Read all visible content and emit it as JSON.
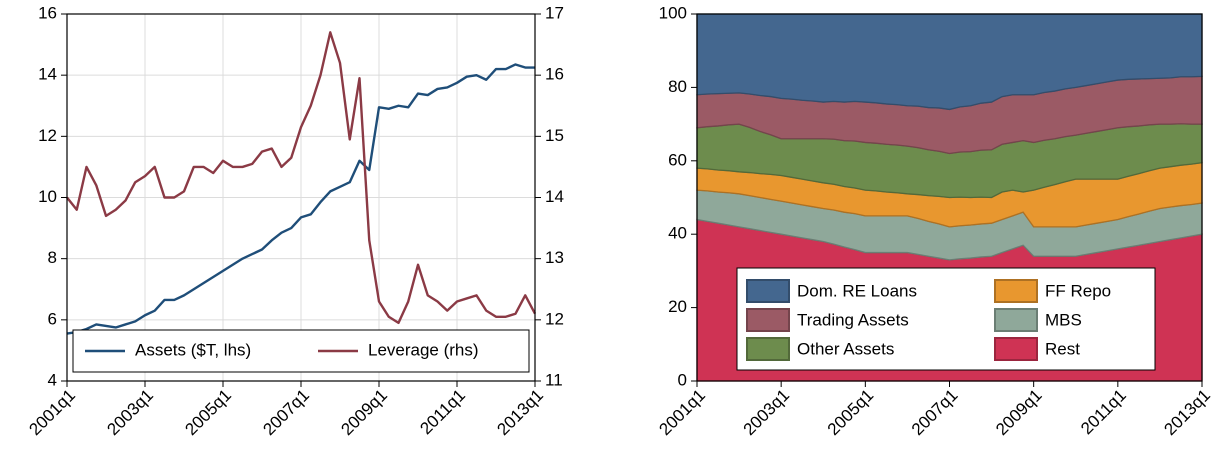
{
  "chart_data": [
    {
      "type": "line",
      "categories": [
        "2001q1",
        null,
        null,
        null,
        null,
        null,
        null,
        null,
        "2003q1",
        null,
        null,
        null,
        null,
        null,
        null,
        null,
        "2005q1",
        null,
        null,
        null,
        null,
        null,
        null,
        null,
        "2007q1",
        null,
        null,
        null,
        null,
        null,
        null,
        null,
        "2009q1",
        null,
        null,
        null,
        null,
        null,
        null,
        null,
        "2011q1",
        null,
        null,
        null,
        null,
        null,
        null,
        null,
        "2013q1"
      ],
      "series": [
        {
          "name": "Assets ($T, lhs)",
          "color": "#1f4e79",
          "values": [
            5.55,
            5.6,
            5.7,
            5.85,
            5.8,
            5.75,
            5.85,
            5.95,
            6.15,
            6.3,
            6.65,
            6.65,
            6.8,
            7.0,
            7.2,
            7.4,
            7.6,
            7.8,
            8.0,
            8.15,
            8.3,
            8.6,
            8.85,
            9.0,
            9.35,
            9.45,
            9.85,
            10.2,
            10.35,
            10.5,
            11.2,
            10.9,
            12.95,
            12.9,
            13.0,
            12.95,
            13.4,
            13.35,
            13.55,
            13.6,
            13.75,
            13.95,
            14.0,
            13.85,
            14.2,
            14.2,
            14.35,
            14.25,
            14.25
          ]
        },
        {
          "name": "Leverage (rhs)",
          "color": "#8b3a45",
          "axis": "y2",
          "values": [
            14.0,
            13.8,
            14.5,
            14.2,
            13.7,
            13.8,
            13.95,
            14.25,
            14.35,
            14.5,
            14.0,
            14.0,
            14.1,
            14.5,
            14.5,
            14.4,
            14.6,
            14.5,
            14.5,
            14.55,
            14.75,
            14.8,
            14.5,
            14.65,
            15.15,
            15.5,
            16.0,
            16.7,
            16.2,
            14.95,
            15.95,
            13.3,
            12.3,
            12.05,
            11.95,
            12.3,
            12.9,
            12.4,
            12.3,
            12.15,
            12.3,
            12.35,
            12.4,
            12.15,
            12.05,
            12.05,
            12.1,
            12.4,
            12.1
          ]
        }
      ],
      "ylim": [
        4,
        16
      ],
      "yticks": [
        4,
        6,
        8,
        10,
        12,
        14,
        16
      ],
      "y2lim": [
        11,
        17
      ],
      "y2ticks": [
        11,
        12,
        13,
        14,
        15,
        16,
        17
      ],
      "grid": true,
      "legend": "bottom"
    },
    {
      "type": "stacked_area",
      "categories": [
        "2001q1",
        null,
        null,
        null,
        null,
        null,
        null,
        null,
        "2003q1",
        null,
        null,
        null,
        null,
        null,
        null,
        null,
        "2005q1",
        null,
        null,
        null,
        null,
        null,
        null,
        null,
        "2007q1",
        null,
        null,
        null,
        null,
        null,
        null,
        null,
        "2009q1",
        null,
        null,
        null,
        null,
        null,
        null,
        null,
        "2011q1",
        null,
        null,
        null,
        null,
        null,
        null,
        null,
        "2013q1"
      ],
      "series": [
        {
          "name": "Rest",
          "color": "#cf3354",
          "values": [
            44,
            43.5,
            43,
            42.5,
            42,
            41.5,
            41,
            40.5,
            40,
            39.5,
            39,
            38.5,
            38,
            37.3,
            36.5,
            35.8,
            35,
            35,
            35,
            35,
            35,
            34.5,
            34,
            33.5,
            33,
            33.3,
            33.5,
            33.8,
            34,
            35,
            36,
            37,
            34,
            34,
            34,
            34,
            34,
            34.5,
            35,
            35.5,
            36,
            36.5,
            37,
            37.5,
            38,
            38.5,
            39,
            39.5,
            40
          ]
        },
        {
          "name": "MBS",
          "color": "#8fa89a",
          "values": [
            8,
            8.3,
            8.5,
            8.8,
            9,
            9,
            9,
            9,
            9,
            9,
            9,
            9,
            9,
            9.3,
            9.5,
            9.8,
            10,
            10,
            10,
            10,
            10,
            9.8,
            9.5,
            9.3,
            9,
            9,
            9,
            9,
            9,
            9,
            9,
            9,
            8,
            8,
            8,
            8,
            8,
            8,
            8,
            8,
            8,
            8.3,
            8.5,
            8.8,
            9,
            8.9,
            8.8,
            8.6,
            8.5
          ]
        },
        {
          "name": "FF Repo",
          "color": "#e8972f",
          "values": [
            6,
            6,
            6,
            6,
            6,
            6.3,
            6.5,
            6.8,
            7,
            7,
            7,
            7,
            7,
            7,
            7,
            7,
            7,
            6.8,
            6.5,
            6.3,
            6,
            6.5,
            7,
            7.5,
            8,
            7.8,
            7.5,
            7.3,
            7,
            7.5,
            7,
            5.5,
            10,
            10.8,
            11.5,
            12.3,
            13,
            12.5,
            12,
            11.5,
            11,
            11,
            11,
            11,
            11,
            11,
            11,
            11,
            11
          ]
        },
        {
          "name": "Other Assets",
          "color": "#6d8c4d",
          "values": [
            11,
            11.5,
            12,
            12.5,
            13,
            12.3,
            11.5,
            10.8,
            10,
            10.5,
            11,
            11.5,
            12,
            12.3,
            12.5,
            12.8,
            13,
            13,
            13,
            13,
            13,
            12.8,
            12.5,
            12.3,
            12,
            12.3,
            12.5,
            12.8,
            13,
            13,
            13,
            14,
            13,
            12.8,
            12.5,
            12.3,
            12,
            12.5,
            13,
            13.5,
            14,
            13.5,
            13,
            12.5,
            12,
            11.6,
            11.3,
            10.9,
            10.5
          ]
        },
        {
          "name": "Trading Assets",
          "color": "#9b5a65",
          "values": [
            9,
            8.9,
            8.8,
            8.6,
            8.5,
            9.1,
            9.8,
            10.4,
            11,
            10.8,
            10.5,
            10.3,
            10,
            10.3,
            10.5,
            10.8,
            11,
            11,
            11,
            11,
            11,
            11.3,
            11.5,
            11.8,
            12,
            12.3,
            12.5,
            12.8,
            13,
            13,
            13,
            12.5,
            13,
            13,
            13,
            13,
            13,
            13,
            13,
            13,
            13,
            12.9,
            12.8,
            12.6,
            12.5,
            12.6,
            12.8,
            12.9,
            13
          ]
        },
        {
          "name": "Dom. RE Loans",
          "color": "#44678f",
          "values": [
            22,
            21.8,
            21.7,
            21.6,
            21.5,
            21.8,
            22.2,
            22.5,
            23,
            23.2,
            23.5,
            23.7,
            24,
            23.8,
            24,
            23.8,
            24,
            24.2,
            24.5,
            24.7,
            25,
            25.1,
            25.5,
            25.6,
            26,
            25.3,
            25,
            24.3,
            24,
            22.5,
            22,
            22,
            22,
            21.4,
            21,
            20.4,
            20,
            19.5,
            19,
            18.5,
            18,
            17.8,
            17.7,
            17.6,
            17.5,
            17.4,
            17.1,
            17.1,
            17
          ]
        }
      ],
      "ylim": [
        0,
        100
      ],
      "yticks": [
        0,
        20,
        40,
        60,
        80,
        100
      ],
      "grid": false,
      "legend": "bottom-left"
    }
  ]
}
